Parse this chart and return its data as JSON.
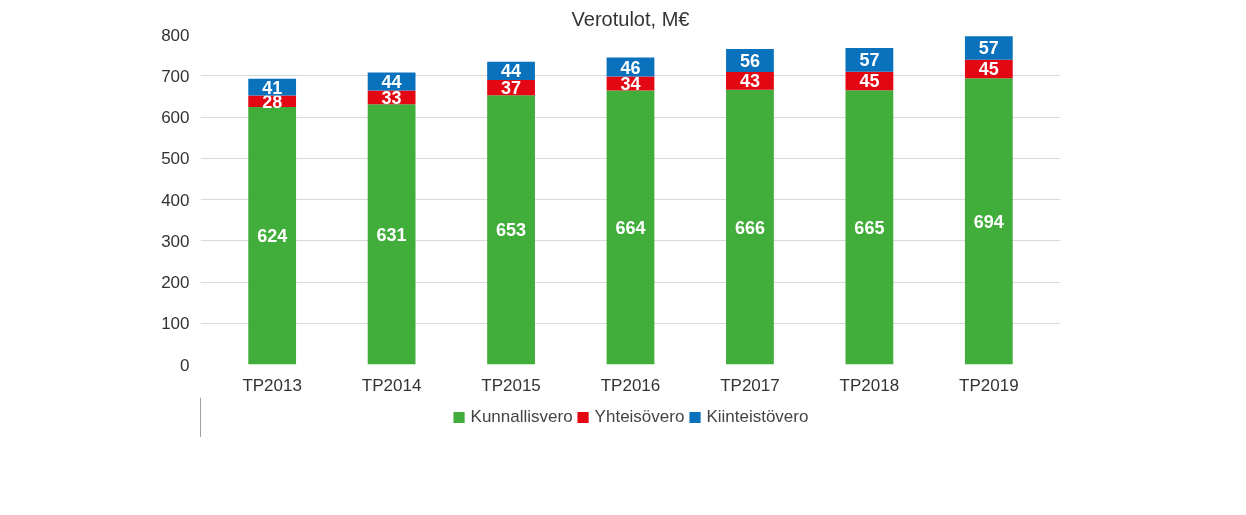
{
  "chart_data": {
    "type": "bar",
    "title": "Verotulot, M€",
    "stacked": true,
    "categories": [
      "TP2013",
      "TP2014",
      "TP2015",
      "TP2016",
      "TP2017",
      "TP2018",
      "TP2019"
    ],
    "series": [
      {
        "name": "Kunnallisvero",
        "color": "#41ad3a",
        "values": [
          624,
          631,
          653,
          664,
          666,
          665,
          694
        ]
      },
      {
        "name": "Yhteisövero",
        "color": "#e30613",
        "values": [
          28,
          33,
          37,
          34,
          43,
          45,
          45
        ]
      },
      {
        "name": "Kiinteistövero",
        "color": "#0a72bd",
        "values": [
          41,
          44,
          44,
          46,
          56,
          57,
          57
        ]
      }
    ],
    "ylim": [
      0,
      800
    ],
    "yticks": [
      0,
      100,
      200,
      300,
      400,
      500,
      600,
      700,
      800
    ],
    "grid": "y",
    "legend": "bottom",
    "data_labels": true
  }
}
